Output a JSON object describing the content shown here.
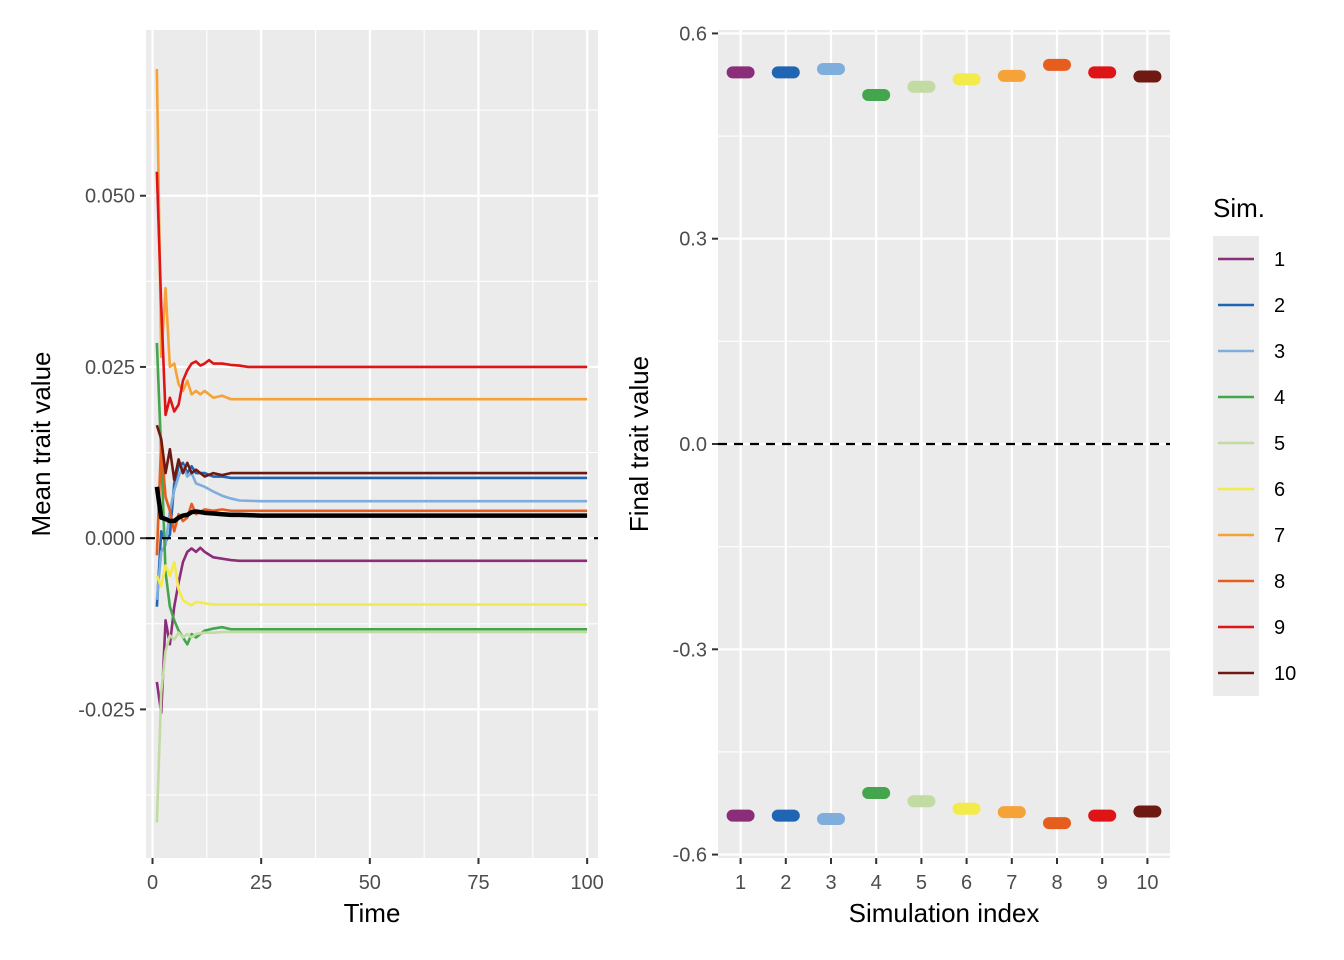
{
  "chart_data": [
    {
      "type": "line",
      "xlabel": "Time",
      "ylabel": "Mean trait value",
      "xlim": [
        -1.5,
        102.5
      ],
      "ylim": [
        -0.0467,
        0.0742
      ],
      "xticks": [
        0,
        25,
        50,
        75,
        100
      ],
      "xtick_labels": [
        "0",
        "25",
        "50",
        "75",
        "100"
      ],
      "yticks": [
        -0.025,
        0.0,
        0.025,
        0.05
      ],
      "ytick_labels": [
        "-0.025",
        "0.000",
        "0.025",
        "0.050"
      ],
      "grid": true,
      "reference_line": {
        "y": 0,
        "style": "dashed"
      },
      "mean_series": {
        "color": "#000000",
        "points": [
          [
            1,
            0.0075
          ],
          [
            2,
            0.003
          ],
          [
            3,
            0.0028
          ],
          [
            4,
            0.0025
          ],
          [
            5,
            0.0025
          ],
          [
            6,
            0.003
          ],
          [
            7,
            0.0033
          ],
          [
            8,
            0.0034
          ],
          [
            9,
            0.0038
          ],
          [
            10,
            0.0039
          ],
          [
            12,
            0.0037
          ],
          [
            14,
            0.0036
          ],
          [
            16,
            0.0035
          ],
          [
            18,
            0.0034
          ],
          [
            20,
            0.0034
          ],
          [
            25,
            0.0033
          ],
          [
            30,
            0.0033
          ],
          [
            40,
            0.0033
          ],
          [
            60,
            0.0033
          ],
          [
            80,
            0.0033
          ],
          [
            100,
            0.0033
          ]
        ]
      },
      "series": [
        {
          "name": "1",
          "color": "#8C2D7A",
          "points": [
            [
              1,
              -0.021
            ],
            [
              2,
              -0.0255
            ],
            [
              3,
              -0.012
            ],
            [
              4,
              -0.0155
            ],
            [
              5,
              -0.01
            ],
            [
              6,
              -0.0065
            ],
            [
              7,
              -0.0035
            ],
            [
              8,
              -0.002
            ],
            [
              9,
              -0.0015
            ],
            [
              10,
              -0.002
            ],
            [
              11,
              -0.0014
            ],
            [
              12,
              -0.002
            ],
            [
              14,
              -0.0028
            ],
            [
              16,
              -0.003
            ],
            [
              18,
              -0.0032
            ],
            [
              20,
              -0.0033
            ],
            [
              30,
              -0.0033
            ],
            [
              50,
              -0.0033
            ],
            [
              100,
              -0.0033
            ]
          ]
        },
        {
          "name": "2",
          "color": "#1F65B3",
          "points": [
            [
              1,
              -0.01
            ],
            [
              2,
              0.001
            ],
            [
              3,
              -0.0005
            ],
            [
              4,
              0.0005
            ],
            [
              5,
              0.008
            ],
            [
              6,
              0.0105
            ],
            [
              7,
              0.011
            ],
            [
              8,
              0.0095
            ],
            [
              9,
              0.0105
            ],
            [
              10,
              0.0095
            ],
            [
              12,
              0.0095
            ],
            [
              14,
              0.009
            ],
            [
              16,
              0.009
            ],
            [
              18,
              0.0088
            ],
            [
              20,
              0.0088
            ],
            [
              30,
              0.0088
            ],
            [
              50,
              0.0088
            ],
            [
              100,
              0.0088
            ]
          ]
        },
        {
          "name": "3",
          "color": "#7FAEDD",
          "points": [
            [
              1,
              -0.009
            ],
            [
              2,
              -0.002
            ],
            [
              3,
              -0.001
            ],
            [
              4,
              0.004
            ],
            [
              5,
              0.007
            ],
            [
              6,
              0.009
            ],
            [
              7,
              0.0105
            ],
            [
              8,
              0.009
            ],
            [
              9,
              0.0095
            ],
            [
              10,
              0.008
            ],
            [
              12,
              0.0075
            ],
            [
              14,
              0.0068
            ],
            [
              16,
              0.0062
            ],
            [
              18,
              0.0058
            ],
            [
              20,
              0.0055
            ],
            [
              25,
              0.0054
            ],
            [
              50,
              0.0054
            ],
            [
              100,
              0.0054
            ]
          ]
        },
        {
          "name": "4",
          "color": "#43A54C",
          "points": [
            [
              1,
              0.0285
            ],
            [
              2,
              0.0125
            ],
            [
              3,
              -0.005
            ],
            [
              4,
              -0.01
            ],
            [
              5,
              -0.012
            ],
            [
              6,
              -0.0135
            ],
            [
              7,
              -0.0145
            ],
            [
              8,
              -0.0155
            ],
            [
              9,
              -0.014
            ],
            [
              10,
              -0.0145
            ],
            [
              12,
              -0.0135
            ],
            [
              14,
              -0.0132
            ],
            [
              16,
              -0.013
            ],
            [
              18,
              -0.0133
            ],
            [
              20,
              -0.0133
            ],
            [
              50,
              -0.0133
            ],
            [
              100,
              -0.0133
            ]
          ]
        },
        {
          "name": "5",
          "color": "#C2DBA2",
          "points": [
            [
              1,
              -0.0415
            ],
            [
              2,
              -0.0225
            ],
            [
              3,
              -0.0165
            ],
            [
              4,
              -0.0142
            ],
            [
              5,
              -0.0148
            ],
            [
              6,
              -0.0138
            ],
            [
              7,
              -0.0145
            ],
            [
              8,
              -0.014
            ],
            [
              9,
              -0.0145
            ],
            [
              10,
              -0.014
            ],
            [
              12,
              -0.0138
            ],
            [
              14,
              -0.0138
            ],
            [
              16,
              -0.0137
            ],
            [
              20,
              -0.0137
            ],
            [
              50,
              -0.0137
            ],
            [
              100,
              -0.0137
            ]
          ]
        },
        {
          "name": "6",
          "color": "#F3EA4C",
          "points": [
            [
              1,
              -0.0055
            ],
            [
              2,
              -0.007
            ],
            [
              3,
              -0.004
            ],
            [
              4,
              -0.0055
            ],
            [
              5,
              -0.0035
            ],
            [
              6,
              -0.0075
            ],
            [
              7,
              -0.009
            ],
            [
              8,
              -0.0095
            ],
            [
              9,
              -0.0098
            ],
            [
              10,
              -0.0093
            ],
            [
              12,
              -0.0095
            ],
            [
              14,
              -0.0097
            ],
            [
              16,
              -0.0097
            ],
            [
              20,
              -0.0097
            ],
            [
              50,
              -0.0097
            ],
            [
              100,
              -0.0097
            ]
          ]
        },
        {
          "name": "7",
          "color": "#F5A339",
          "points": [
            [
              1,
              0.0685
            ],
            [
              2,
              0.0265
            ],
            [
              3,
              0.0365
            ],
            [
              4,
              0.025
            ],
            [
              5,
              0.0255
            ],
            [
              6,
              0.0225
            ],
            [
              7,
              0.0215
            ],
            [
              8,
              0.023
            ],
            [
              9,
              0.021
            ],
            [
              10,
              0.0215
            ],
            [
              11,
              0.021
            ],
            [
              12,
              0.0215
            ],
            [
              14,
              0.0205
            ],
            [
              16,
              0.0208
            ],
            [
              18,
              0.0203
            ],
            [
              20,
              0.0203
            ],
            [
              30,
              0.0203
            ],
            [
              50,
              0.0203
            ],
            [
              100,
              0.0203
            ]
          ]
        },
        {
          "name": "8",
          "color": "#E65E1E",
          "points": [
            [
              1,
              -0.0025
            ],
            [
              2,
              0.014
            ],
            [
              3,
              0.006
            ],
            [
              4,
              0.004
            ],
            [
              5,
              0.001
            ],
            [
              6,
              0.0035
            ],
            [
              7,
              0.0025
            ],
            [
              8,
              0.003
            ],
            [
              9,
              0.005
            ],
            [
              10,
              0.0035
            ],
            [
              12,
              0.0042
            ],
            [
              14,
              0.004
            ],
            [
              16,
              0.0042
            ],
            [
              18,
              0.004
            ],
            [
              20,
              0.004
            ],
            [
              50,
              0.004
            ],
            [
              100,
              0.004
            ]
          ]
        },
        {
          "name": "9",
          "color": "#DF1417",
          "points": [
            [
              1,
              0.0535
            ],
            [
              2,
              0.034
            ],
            [
              3,
              0.018
            ],
            [
              4,
              0.0205
            ],
            [
              5,
              0.0185
            ],
            [
              6,
              0.0195
            ],
            [
              7,
              0.023
            ],
            [
              8,
              0.0245
            ],
            [
              9,
              0.0255
            ],
            [
              10,
              0.0258
            ],
            [
              11,
              0.0252
            ],
            [
              12,
              0.0255
            ],
            [
              13,
              0.026
            ],
            [
              14,
              0.0255
            ],
            [
              16,
              0.0255
            ],
            [
              18,
              0.0253
            ],
            [
              20,
              0.0252
            ],
            [
              22,
              0.025
            ],
            [
              25,
              0.025
            ],
            [
              50,
              0.025
            ],
            [
              100,
              0.025
            ]
          ]
        },
        {
          "name": "10",
          "color": "#6E1A12",
          "points": [
            [
              1,
              0.0165
            ],
            [
              2,
              0.0145
            ],
            [
              3,
              0.0095
            ],
            [
              4,
              0.013
            ],
            [
              5,
              0.0085
            ],
            [
              6,
              0.0115
            ],
            [
              7,
              0.0095
            ],
            [
              8,
              0.011
            ],
            [
              9,
              0.0095
            ],
            [
              10,
              0.01
            ],
            [
              12,
              0.009
            ],
            [
              14,
              0.0095
            ],
            [
              16,
              0.0092
            ],
            [
              18,
              0.0095
            ],
            [
              20,
              0.0095
            ],
            [
              50,
              0.0095
            ],
            [
              100,
              0.0095
            ]
          ]
        }
      ]
    },
    {
      "type": "scatter",
      "xlabel": "Simulation index",
      "ylabel": "Final trait value",
      "xlim": [
        0.5,
        10.5
      ],
      "ylim": [
        -0.605,
        0.605
      ],
      "xticks": [
        1,
        2,
        3,
        4,
        5,
        6,
        7,
        8,
        9,
        10
      ],
      "xtick_labels": [
        "1",
        "2",
        "3",
        "4",
        "5",
        "6",
        "7",
        "8",
        "9",
        "10"
      ],
      "yticks": [
        -0.6,
        -0.3,
        0.0,
        0.3,
        0.6
      ],
      "ytick_labels": [
        "-0.6",
        "-0.3",
        "0.0",
        "0.3",
        "0.6"
      ],
      "grid": true,
      "reference_line": {
        "y": 0,
        "style": "dashed"
      },
      "points": [
        {
          "sim": 1,
          "upper": 0.543,
          "lower": -0.543
        },
        {
          "sim": 2,
          "upper": 0.543,
          "lower": -0.543
        },
        {
          "sim": 3,
          "upper": 0.548,
          "lower": -0.548
        },
        {
          "sim": 4,
          "upper": 0.51,
          "lower": -0.51
        },
        {
          "sim": 5,
          "upper": 0.522,
          "lower": -0.522
        },
        {
          "sim": 6,
          "upper": 0.533,
          "lower": -0.533
        },
        {
          "sim": 7,
          "upper": 0.538,
          "lower": -0.538
        },
        {
          "sim": 8,
          "upper": 0.554,
          "lower": -0.554
        },
        {
          "sim": 9,
          "upper": 0.543,
          "lower": -0.543
        },
        {
          "sim": 10,
          "upper": 0.537,
          "lower": -0.537
        }
      ]
    }
  ],
  "legend": {
    "title": "Sim.",
    "placement": "right",
    "items": [
      {
        "label": "1",
        "color": "#8C2D7A"
      },
      {
        "label": "2",
        "color": "#1F65B3"
      },
      {
        "label": "3",
        "color": "#7FAEDD"
      },
      {
        "label": "4",
        "color": "#43A54C"
      },
      {
        "label": "5",
        "color": "#C2DBA2"
      },
      {
        "label": "6",
        "color": "#F3EA4C"
      },
      {
        "label": "7",
        "color": "#F5A339"
      },
      {
        "label": "8",
        "color": "#E65E1E"
      },
      {
        "label": "9",
        "color": "#DF1417"
      },
      {
        "label": "10",
        "color": "#6E1A12"
      }
    ]
  }
}
